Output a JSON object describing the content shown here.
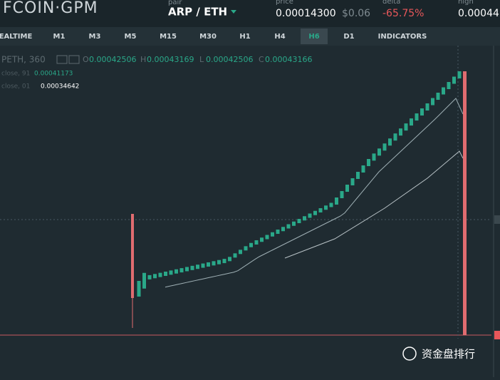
{
  "header": {
    "logo": "FCOIN·GPM",
    "pair_label": "pair",
    "pair": "ARP / ETH",
    "price_label": "price",
    "price": "0.00014300",
    "price_usd": "$0.06",
    "delta_label": "delta",
    "delta": "-65.75%",
    "high_label": "high",
    "high": "0.00044"
  },
  "tabs": [
    "EALTIME",
    "M1",
    "M3",
    "M5",
    "M15",
    "M30",
    "H1",
    "H4",
    "H6",
    "D1",
    "INDICATORS"
  ],
  "active_tab": "H6",
  "info": {
    "symbol": "PETH, 360",
    "ohlc": [
      {
        "label": "O",
        "value": "0.00042506"
      },
      {
        "label": "H",
        "value": "0.00043169"
      },
      {
        "label": "L",
        "value": "0.00042506"
      },
      {
        "label": "C",
        "value": "0.00043166"
      }
    ]
  },
  "indicators": [
    {
      "name": "close, 91",
      "value": "0.00041173"
    },
    {
      "name": "close, 01",
      "value": "0.00034642"
    }
  ],
  "watermark": "资金盘排行"
}
